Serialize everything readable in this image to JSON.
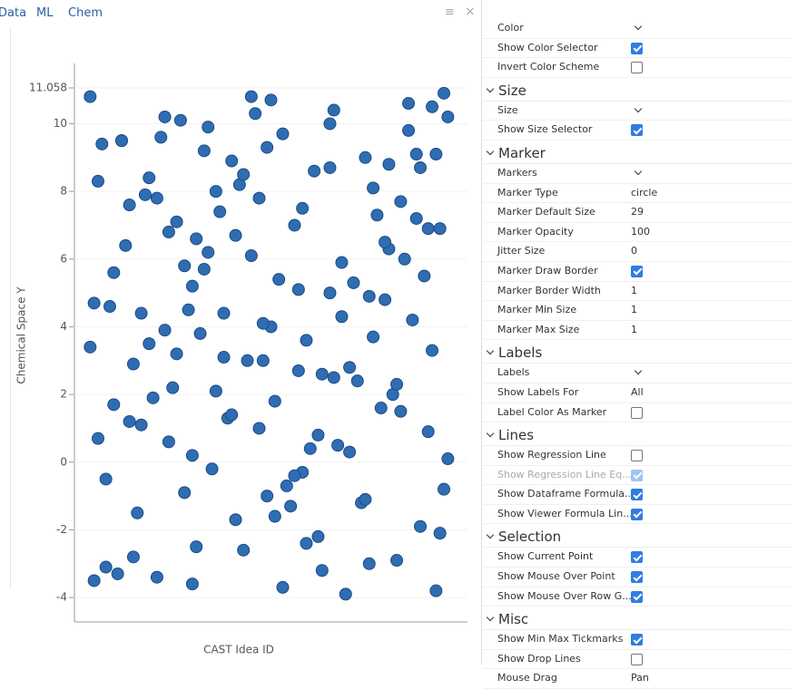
{
  "tabs": [
    "Data",
    "ML",
    "Chem"
  ],
  "chart_data": {
    "type": "scatter",
    "x_label": "CAST Idea ID",
    "y_label": "Chemical Space Y",
    "color": "#2f6db3",
    "border_color": "#1d4a85",
    "xlim": [
      0,
      100
    ],
    "ylim": [
      -4.72,
      11.78
    ],
    "yticks": [
      -4,
      -2,
      0,
      2,
      4,
      6,
      8,
      10,
      11.058
    ],
    "x": [
      4,
      12,
      21,
      30,
      38,
      47,
      55,
      63,
      72,
      80,
      88,
      95,
      8,
      17,
      26,
      34,
      43,
      51,
      59,
      68,
      76,
      85,
      92,
      6,
      15,
      24,
      33,
      41,
      50,
      58,
      66,
      75,
      83,
      91,
      10,
      19,
      28,
      36,
      45,
      53,
      62,
      70,
      79,
      87,
      94,
      5,
      14,
      23,
      31,
      40,
      49,
      57,
      65,
      74,
      82,
      90,
      9,
      18,
      27,
      35,
      44,
      52,
      61,
      69,
      78,
      86,
      93,
      7,
      16,
      25,
      33,
      42,
      50,
      59,
      67,
      76,
      84,
      92,
      11,
      20,
      29,
      37,
      46,
      54,
      63,
      71,
      80,
      88,
      95,
      4,
      13,
      22,
      30,
      39,
      48,
      56,
      65,
      73,
      81,
      89,
      6,
      15,
      24,
      32,
      41,
      49,
      58,
      66,
      75,
      83,
      91,
      8,
      17,
      26,
      34,
      43,
      51,
      60,
      68,
      77,
      85,
      93,
      10,
      19,
      28,
      36,
      45,
      53,
      62,
      70,
      79,
      87,
      94,
      5,
      14,
      23,
      31,
      40,
      48,
      57,
      65,
      74,
      82,
      90,
      12,
      21,
      30,
      38,
      47,
      56
    ],
    "y": [
      10.8,
      9.5,
      7.8,
      5.2,
      3.1,
      1.0,
      -1.3,
      -3.2,
      2.4,
      6.3,
      8.7,
      10.2,
      -0.5,
      4.4,
      7.1,
      9.9,
      -2.6,
      1.8,
      3.6,
      5.9,
      8.1,
      10.6,
      -3.8,
      0.7,
      2.9,
      6.8,
      9.2,
      -1.7,
      4.0,
      7.5,
      10.4,
      -3.0,
      1.5,
      3.3,
      5.6,
      8.4,
      -0.9,
      2.1,
      6.1,
      9.7,
      -2.2,
      0.3,
      4.8,
      7.2,
      10.9,
      -3.5,
      1.2,
      3.9,
      6.6,
      8.9,
      -1.0,
      2.7,
      5.0,
      9.0,
      -2.9,
      0.9,
      4.6,
      7.9,
      10.1,
      -0.2,
      3.0,
      5.4,
      8.6,
      -3.9,
      1.6,
      4.2,
      6.9,
      9.4,
      -1.5,
      2.2,
      5.7,
      8.2,
      10.7,
      -2.4,
      0.5,
      3.7,
      6.0,
      9.1,
      -3.3,
      1.9,
      4.5,
      7.4,
      10.3,
      -0.7,
      2.6,
      5.3,
      8.8,
      -1.9,
      0.1,
      3.4,
      6.4,
      9.6,
      -3.6,
      1.3,
      4.1,
      7.0,
      10.0,
      -1.2,
      2.0,
      5.5,
      8.3,
      -2.8,
      0.6,
      3.8,
      6.7,
      9.3,
      -0.3,
      2.5,
      4.9,
      7.7,
      10.5,
      -3.1,
      1.1,
      3.2,
      6.2,
      8.5,
      -1.6,
      0.4,
      4.3,
      7.3,
      9.8,
      -2.1,
      1.7,
      3.5,
      5.8,
      8.0,
      10.8,
      -3.7,
      0.8,
      2.8,
      6.5,
      9.1,
      -0.8,
      4.7,
      7.6,
      10.2,
      -2.5,
      1.4,
      3.0,
      5.1,
      8.7,
      -1.1,
      2.3,
      6.9,
      9.5,
      -3.4,
      0.2,
      4.4,
      7.8,
      -0.4
    ]
  },
  "panel": {
    "sections": [
      {
        "rows": [
          {
            "label": "Color",
            "dropdown": true
          },
          {
            "label": "Show Color Selector",
            "checked": true
          },
          {
            "label": "Invert Color Scheme",
            "checked": false
          }
        ]
      },
      {
        "title": "Size",
        "rows": [
          {
            "label": "Size",
            "dropdown": true
          },
          {
            "label": "Show Size Selector",
            "checked": true
          }
        ]
      },
      {
        "title": "Marker",
        "rows": [
          {
            "label": "Markers",
            "dropdown": true
          },
          {
            "label": "Marker Type",
            "value": "circle"
          },
          {
            "label": "Marker Default Size",
            "value": "29"
          },
          {
            "label": "Marker Opacity",
            "value": "100"
          },
          {
            "label": "Jitter Size",
            "value": "0"
          },
          {
            "label": "Marker Draw Border",
            "checked": true
          },
          {
            "label": "Marker Border Width",
            "value": "1"
          },
          {
            "label": "Marker Min Size",
            "value": "1"
          },
          {
            "label": "Marker Max Size",
            "value": "1"
          }
        ]
      },
      {
        "title": "Labels",
        "rows": [
          {
            "label": "Labels",
            "dropdown": true
          },
          {
            "label": "Show Labels For",
            "value": "All"
          },
          {
            "label": "Label Color As Marker",
            "checked": false
          }
        ]
      },
      {
        "title": "Lines",
        "rows": [
          {
            "label": "Show Regression Line",
            "checked": false
          },
          {
            "label": "Show Regression Line Eq...",
            "checked": true,
            "disabled": true
          },
          {
            "label": "Show Dataframe Formula...",
            "checked": true
          },
          {
            "label": "Show Viewer Formula Lin...",
            "checked": true
          }
        ]
      },
      {
        "title": "Selection",
        "rows": [
          {
            "label": "Show Current Point",
            "checked": true
          },
          {
            "label": "Show Mouse Over Point",
            "checked": true
          },
          {
            "label": "Show Mouse Over Row G...",
            "checked": true
          }
        ]
      },
      {
        "title": "Misc",
        "rows": [
          {
            "label": "Show Min Max Tickmarks",
            "checked": true
          },
          {
            "label": "Show Drop Lines",
            "checked": false
          },
          {
            "label": "Mouse Drag",
            "value": "Pan"
          }
        ]
      }
    ]
  }
}
